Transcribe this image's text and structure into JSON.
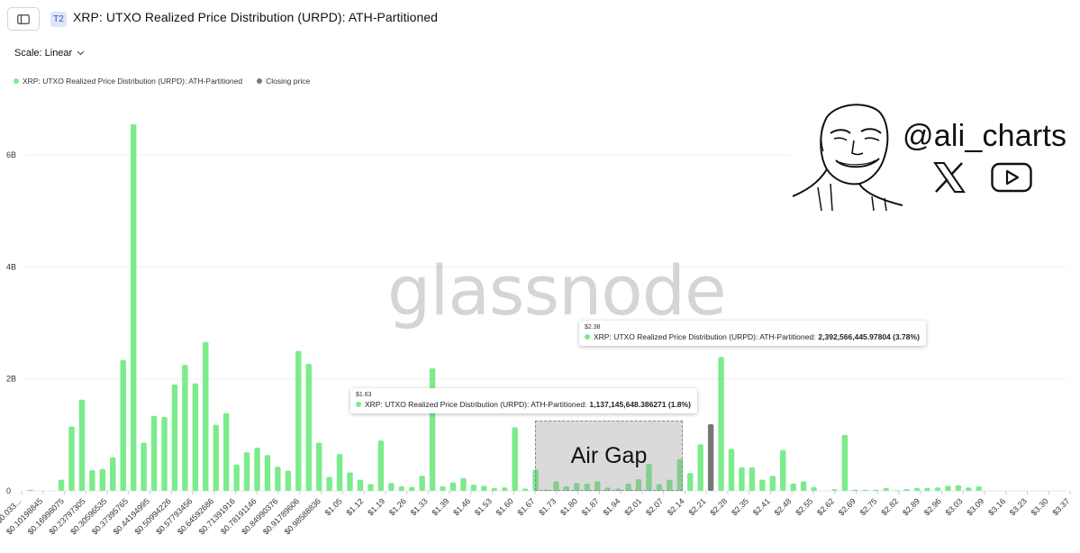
{
  "header": {
    "badge": "T2",
    "title": "XRP: UTXO Realized Price Distribution (URPD): ATH-Partitioned"
  },
  "controls": {
    "scale_label": "Scale: Linear"
  },
  "legend": [
    {
      "label": "XRP: UTXO Realized Price Distribution (URPD): ATH-Partitioned",
      "color": "#7beb8c"
    },
    {
      "label": "Closing price",
      "color": "#777777"
    }
  ],
  "watermark": "glassnode",
  "branding": {
    "handle": "@ali_charts",
    "icons": [
      "x-icon",
      "youtube-icon"
    ]
  },
  "annotation": {
    "label": "Air Gap"
  },
  "tooltips": [
    {
      "price": "$1.63",
      "series": "XRP: UTXO Realized Price Distribution (URPD): ATH-Partitioned:",
      "value": "1,137,145,648.386271 (1.8%)"
    },
    {
      "price": "$2.38",
      "series": "XRP: UTXO Realized Price Distribution (URPD): ATH-Partitioned:",
      "value": "2,392,566,445.97804 (3.78%)"
    }
  ],
  "chart_data": {
    "type": "bar",
    "ylim": [
      0,
      7000000000
    ],
    "yticks": [
      {
        "value": 0,
        "label": "0"
      },
      {
        "value": 2000000000,
        "label": "2B"
      },
      {
        "value": 4000000000,
        "label": "4B"
      },
      {
        "value": 6000000000,
        "label": "6B"
      }
    ],
    "grid": true,
    "xtick_labels": [
      "$0.033...",
      "$0.10198845",
      "$0.16998075",
      "$0.23797305",
      "$0.30596535",
      "$0.37395765",
      "$0.44194995",
      "$0.50994226",
      "$0.57793456",
      "$0.64592686",
      "$0.71391916",
      "$0.78191146",
      "$0.84990376",
      "$0.91789606",
      "$0.98588836",
      "$1.05",
      "$1.12",
      "$1.19",
      "$1.26",
      "$1.33",
      "$1.39",
      "$1.46",
      "$1.53",
      "$1.60",
      "$1.67",
      "$1.73",
      "$1.80",
      "$1.87",
      "$1.94",
      "$2.01",
      "$2.07",
      "$2.14",
      "$2.21",
      "$2.28",
      "$2.35",
      "$2.41",
      "$2.48",
      "$2.55",
      "$2.62",
      "$2.69",
      "$2.75",
      "$2.82",
      "$2.89",
      "$2.96",
      "$3.03",
      "$3.09",
      "$3.16",
      "$3.23",
      "$3.30",
      "$3.37"
    ],
    "series": [
      {
        "name": "XRP: UTXO Realized Price Distribution (URPD): ATH-Partitioned",
        "color": "#7beb8c",
        "values": [
          20000000,
          0,
          0,
          200000000,
          1150000000,
          1630000000,
          370000000,
          390000000,
          600000000,
          2340000000,
          6550000000,
          860000000,
          1340000000,
          1320000000,
          1900000000,
          2250000000,
          1920000000,
          2660000000,
          1180000000,
          1390000000,
          470000000,
          690000000,
          770000000,
          640000000,
          430000000,
          360000000,
          2500000000,
          2270000000,
          860000000,
          250000000,
          660000000,
          330000000,
          200000000,
          120000000,
          900000000,
          140000000,
          80000000,
          70000000,
          270000000,
          2190000000,
          80000000,
          150000000,
          230000000,
          110000000,
          90000000,
          50000000,
          60000000,
          1137145648,
          40000000,
          380000000,
          20000000,
          170000000,
          80000000,
          140000000,
          130000000,
          170000000,
          60000000,
          40000000,
          130000000,
          210000000,
          480000000,
          120000000,
          200000000,
          570000000,
          320000000,
          830000000,
          0,
          2392566446,
          750000000,
          420000000,
          420000000,
          200000000,
          270000000,
          730000000,
          130000000,
          170000000,
          70000000,
          0,
          30000000,
          1000000000,
          20000000,
          20000000,
          20000000,
          50000000,
          10000000,
          30000000,
          50000000,
          50000000,
          60000000,
          90000000,
          100000000,
          60000000,
          80000000,
          0,
          0,
          0,
          0,
          0,
          0,
          0,
          0
        ]
      },
      {
        "name": "Closing price",
        "color": "#777777",
        "bar_index": 66,
        "value": 1190000000
      }
    ]
  }
}
